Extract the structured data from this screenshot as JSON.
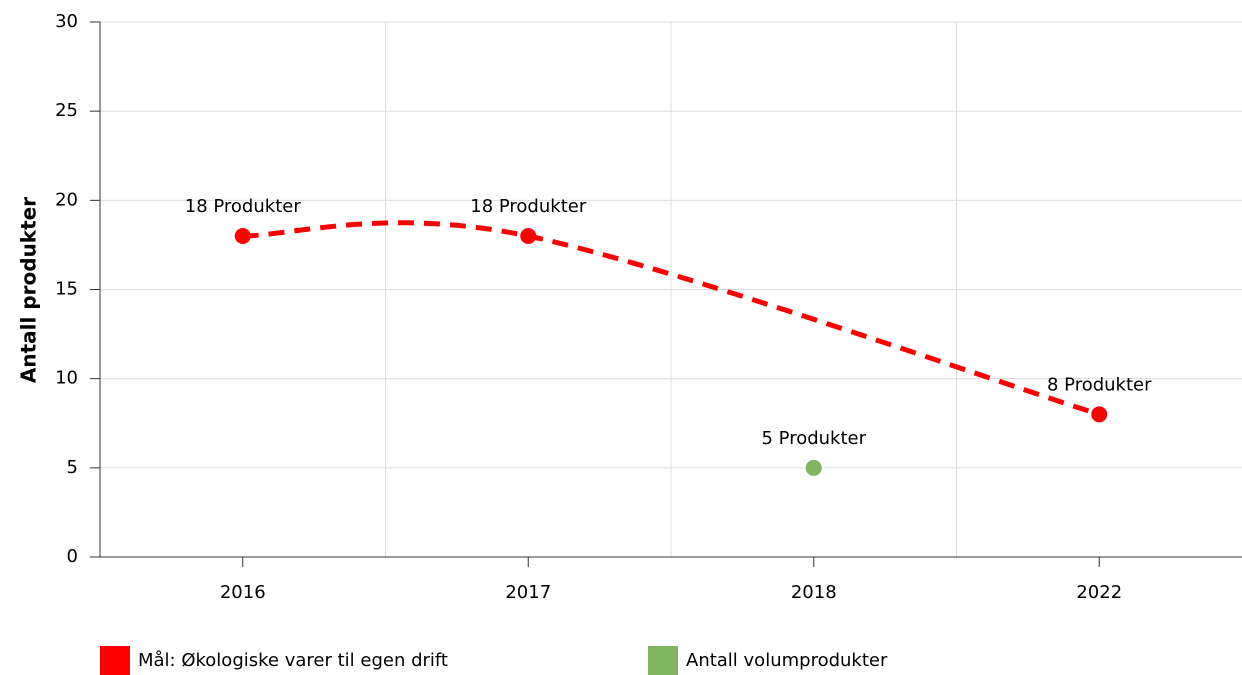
{
  "chart_data": {
    "type": "line",
    "y_label": "Antall produkter",
    "categories": [
      "2016",
      "2017",
      "2018",
      "2022"
    ],
    "series": [
      {
        "name": "Mål: Økologiske varer til egen drift",
        "color": "#ff0000",
        "x": [
          "2016",
          "2017",
          "2022"
        ],
        "values": [
          18,
          18,
          8
        ],
        "value_labels": [
          "18 Produkter",
          "18 Produkter",
          "8 Produkter"
        ],
        "line": "dashed-smooth"
      },
      {
        "name": "Antall volumprodukter",
        "color": "#7fb560",
        "x": [
          "2018"
        ],
        "values": [
          5
        ],
        "value_labels": [
          "5 Produkter"
        ]
      }
    ],
    "ylim": [
      0,
      30
    ],
    "yticks": [
      0,
      5,
      10,
      15,
      20,
      25,
      30
    ],
    "grid": true
  }
}
